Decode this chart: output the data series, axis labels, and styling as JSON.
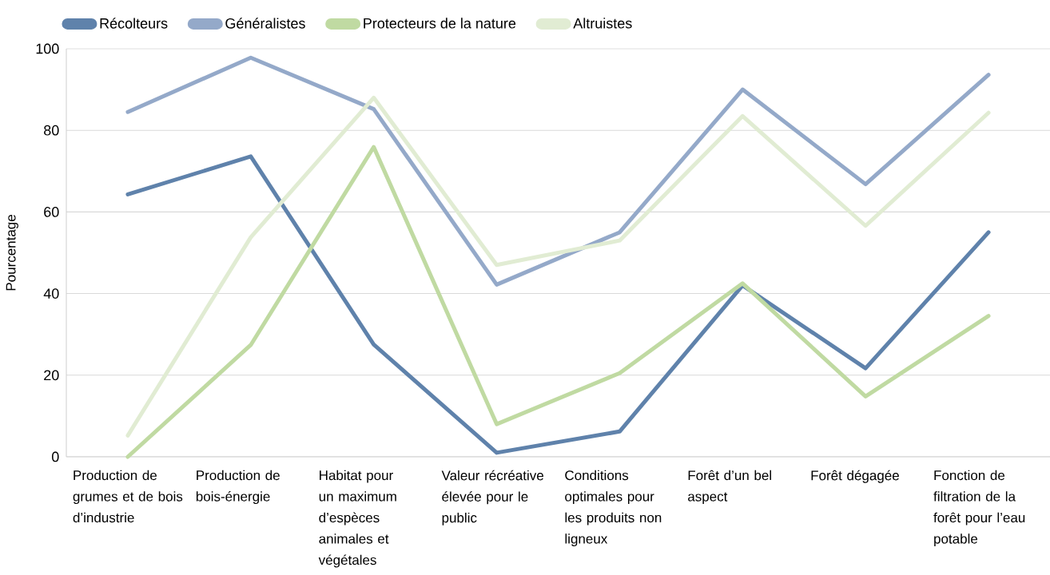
{
  "chart_data": {
    "type": "line",
    "ylabel": "Pourcentage",
    "categories": [
      "Production de grumes et de bois d’industrie",
      "Production de bois-énergie",
      "Habitat pour un maximum d’espèces animales et végétales",
      "Valeur récréative élevée pour le public",
      "Conditions optimales pour les produits non ligneux",
      "Forêt d’un bel aspect",
      "Forêt dégagée",
      "Fonction de filtration de la forêt pour l’eau potable"
    ],
    "series": [
      {
        "name": "Récolteurs",
        "color": "#5f82ab",
        "values": [
          64.3,
          73.6,
          27.5,
          1,
          6.2,
          42,
          21.7,
          55
        ]
      },
      {
        "name": "Généralistes",
        "color": "#94a9c9",
        "values": [
          84.5,
          97.8,
          85.2,
          42.2,
          55,
          90,
          66.8,
          93.6
        ]
      },
      {
        "name": "Protecteurs de la nature",
        "color": "#c0daa2",
        "values": [
          0,
          27.4,
          75.9,
          8,
          20.5,
          42.5,
          14.8,
          34.5
        ]
      },
      {
        "name": "Altruistes",
        "color": "#e1ecd3",
        "values": [
          5.2,
          53.8,
          88,
          47,
          53,
          83.5,
          56.6,
          84.3
        ]
      }
    ],
    "ylim": [
      0,
      100
    ],
    "yticks": [
      0,
      20,
      40,
      60,
      80,
      100
    ],
    "grid": "y",
    "legend": "top left",
    "marker": "none",
    "line_style": "solid"
  }
}
